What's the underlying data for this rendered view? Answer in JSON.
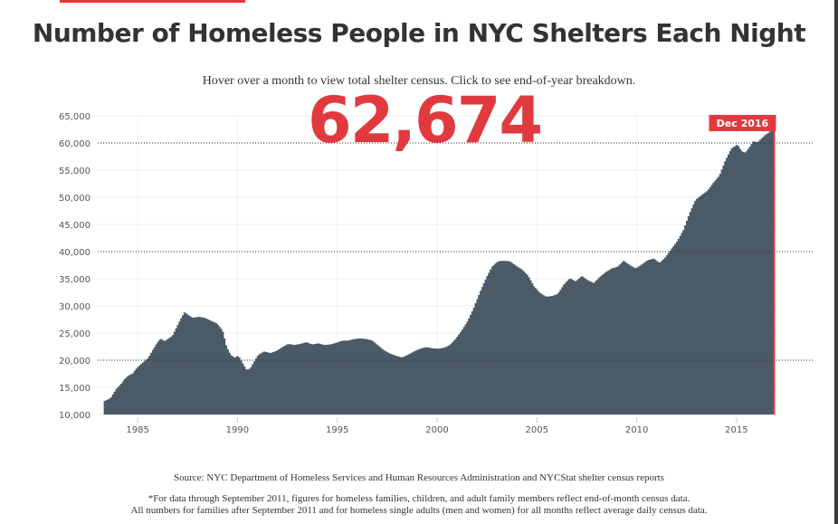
{
  "title": "Number of Homeless People in NYC Shelters Each Night",
  "subtitle": "Hover over a month to view total shelter census. Click to see end-of-year breakdown.",
  "highlight": {
    "value": "62,674",
    "label": "Dec 2016"
  },
  "source": "Source: NYC Department of Homeless Services and Human Resources Administration and NYCStat shelter census reports",
  "footnote_line1": "*For data through September 2011, figures for homeless families, children, and adult family members reflect end-of-month census data.",
  "footnote_line2": "All numbers for families after September 2011 and for homeless single adults (men and women) for all months reflect average daily census data.",
  "colors": {
    "bars": "#4a5a66",
    "accent": "#e03a3e",
    "text": "#333333"
  },
  "chart_data": {
    "type": "bar",
    "title": "Number of Homeless People in NYC Shelters Each Night",
    "xlabel": "",
    "ylabel": "",
    "ylim": [
      10000,
      65000
    ],
    "xlim": [
      1983,
      2017
    ],
    "y_ticks": [
      10000,
      15000,
      20000,
      25000,
      30000,
      35000,
      40000,
      45000,
      50000,
      55000,
      60000,
      65000
    ],
    "y_tick_labels": [
      "10,000",
      "15,000",
      "20,000",
      "25,000",
      "30,000",
      "35,000",
      "40,000",
      "45,000",
      "50,000",
      "55,000",
      "60,000",
      "65,000"
    ],
    "x_ticks": [
      1985,
      1990,
      1995,
      2000,
      2005,
      2010,
      2015
    ],
    "x_tick_labels": [
      "1985",
      "1990",
      "1995",
      "2000",
      "2005",
      "2010",
      "2015"
    ],
    "reference_lines": [
      20000,
      40000,
      60000
    ],
    "highlight": {
      "date": "Dec 2016",
      "value": 62674
    },
    "series": [
      {
        "points": [
          [
            1983.3,
            12500
          ],
          [
            1983.6,
            13000
          ],
          [
            1983.9,
            14800
          ],
          [
            1984.1,
            15500
          ],
          [
            1984.3,
            16500
          ],
          [
            1984.5,
            17200
          ],
          [
            1984.7,
            17500
          ],
          [
            1984.9,
            18500
          ],
          [
            1985.1,
            19200
          ],
          [
            1985.3,
            19800
          ],
          [
            1985.5,
            20500
          ],
          [
            1985.7,
            21800
          ],
          [
            1985.9,
            23000
          ],
          [
            1986.1,
            24000
          ],
          [
            1986.3,
            23500
          ],
          [
            1986.5,
            24000
          ],
          [
            1986.7,
            24500
          ],
          [
            1986.9,
            26000
          ],
          [
            1987.1,
            27500
          ],
          [
            1987.3,
            28800
          ],
          [
            1987.5,
            28300
          ],
          [
            1987.7,
            27800
          ],
          [
            1988.0,
            28000
          ],
          [
            1988.3,
            27800
          ],
          [
            1988.6,
            27300
          ],
          [
            1988.9,
            26800
          ],
          [
            1989.2,
            25500
          ],
          [
            1989.4,
            22500
          ],
          [
            1989.6,
            21000
          ],
          [
            1989.8,
            20500
          ],
          [
            1990.0,
            20800
          ],
          [
            1990.2,
            19500
          ],
          [
            1990.4,
            18200
          ],
          [
            1990.6,
            18500
          ],
          [
            1990.8,
            19800
          ],
          [
            1991.0,
            21000
          ],
          [
            1991.3,
            21600
          ],
          [
            1991.6,
            21300
          ],
          [
            1991.9,
            21700
          ],
          [
            1992.2,
            22400
          ],
          [
            1992.5,
            23000
          ],
          [
            1992.8,
            22800
          ],
          [
            1993.1,
            23000
          ],
          [
            1993.4,
            23300
          ],
          [
            1993.7,
            22900
          ],
          [
            1994.0,
            23100
          ],
          [
            1994.3,
            22800
          ],
          [
            1994.6,
            22900
          ],
          [
            1994.9,
            23200
          ],
          [
            1995.2,
            23600
          ],
          [
            1995.5,
            23600
          ],
          [
            1995.8,
            23900
          ],
          [
            1996.1,
            24000
          ],
          [
            1996.4,
            23900
          ],
          [
            1996.7,
            23600
          ],
          [
            1997.0,
            22700
          ],
          [
            1997.3,
            21800
          ],
          [
            1997.6,
            21200
          ],
          [
            1997.9,
            20800
          ],
          [
            1998.2,
            20500
          ],
          [
            1998.5,
            21000
          ],
          [
            1998.8,
            21600
          ],
          [
            1999.1,
            22100
          ],
          [
            1999.4,
            22400
          ],
          [
            1999.7,
            22200
          ],
          [
            2000.0,
            22100
          ],
          [
            2000.3,
            22300
          ],
          [
            2000.6,
            22800
          ],
          [
            2000.9,
            24000
          ],
          [
            2001.2,
            25500
          ],
          [
            2001.5,
            27300
          ],
          [
            2001.8,
            29700
          ],
          [
            2002.1,
            32500
          ],
          [
            2002.4,
            35000
          ],
          [
            2002.7,
            37200
          ],
          [
            2003.0,
            38200
          ],
          [
            2003.3,
            38300
          ],
          [
            2003.6,
            38200
          ],
          [
            2003.9,
            37400
          ],
          [
            2004.2,
            36700
          ],
          [
            2004.5,
            35600
          ],
          [
            2004.8,
            33600
          ],
          [
            2005.1,
            32400
          ],
          [
            2005.4,
            31700
          ],
          [
            2005.7,
            31800
          ],
          [
            2006.0,
            32200
          ],
          [
            2006.3,
            33900
          ],
          [
            2006.6,
            35100
          ],
          [
            2006.9,
            34500
          ],
          [
            2007.2,
            35500
          ],
          [
            2007.5,
            34700
          ],
          [
            2007.8,
            34200
          ],
          [
            2008.1,
            35300
          ],
          [
            2008.4,
            36200
          ],
          [
            2008.7,
            36900
          ],
          [
            2009.0,
            37200
          ],
          [
            2009.3,
            38300
          ],
          [
            2009.6,
            37500
          ],
          [
            2009.9,
            36900
          ],
          [
            2010.2,
            37600
          ],
          [
            2010.5,
            38400
          ],
          [
            2010.8,
            38700
          ],
          [
            2011.1,
            37900
          ],
          [
            2011.4,
            39000
          ],
          [
            2011.7,
            40500
          ],
          [
            2012.0,
            42000
          ],
          [
            2012.3,
            44000
          ],
          [
            2012.6,
            47000
          ],
          [
            2012.9,
            49500
          ],
          [
            2013.2,
            50400
          ],
          [
            2013.5,
            51200
          ],
          [
            2013.8,
            52700
          ],
          [
            2014.1,
            54000
          ],
          [
            2014.4,
            56800
          ],
          [
            2014.7,
            59000
          ],
          [
            2015.0,
            59700
          ],
          [
            2015.2,
            58500
          ],
          [
            2015.4,
            58200
          ],
          [
            2015.6,
            59200
          ],
          [
            2015.8,
            60300
          ],
          [
            2016.0,
            60100
          ],
          [
            2016.2,
            60800
          ],
          [
            2016.4,
            61500
          ],
          [
            2016.6,
            62000
          ],
          [
            2016.8,
            62674
          ]
        ]
      }
    ]
  }
}
